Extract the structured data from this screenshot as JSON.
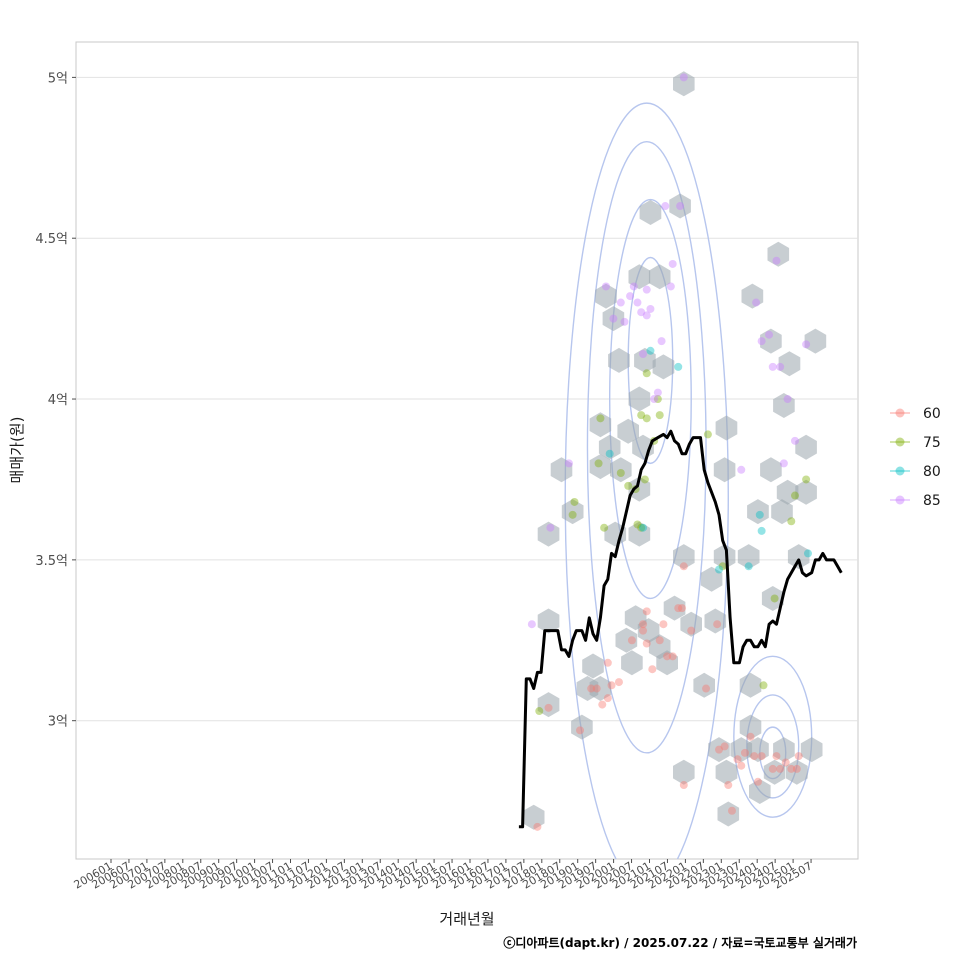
{
  "chart_data": {
    "type": "scatter",
    "xlabel": "거래년월",
    "ylabel": "매매가(원)",
    "caption": "ⓒ디아파트(dapt.kr) / 2025.07.22 / 자료=국토교통부 실거래가",
    "x_range": [
      2005.6,
      2026.7
    ],
    "y_range": [
      2.57,
      5.11
    ],
    "y_ticks": [
      {
        "value": 3.0,
        "label": "3억"
      },
      {
        "value": 3.5,
        "label": "3.5억"
      },
      {
        "value": 4.0,
        "label": "4억"
      },
      {
        "value": 4.5,
        "label": "4.5억"
      },
      {
        "value": 5.0,
        "label": "5억"
      }
    ],
    "x_ticks": [
      "200601",
      "200607",
      "200701",
      "200707",
      "200801",
      "200807",
      "200901",
      "200907",
      "201001",
      "201007",
      "201101",
      "201107",
      "201201",
      "201207",
      "201301",
      "201307",
      "201401",
      "201407",
      "201501",
      "201507",
      "201601",
      "201607",
      "201701",
      "201707",
      "201801",
      "201807",
      "201901",
      "201907",
      "202001",
      "202007",
      "202101",
      "202107",
      "202201",
      "202207",
      "202301",
      "202307",
      "202401",
      "202407",
      "202501",
      "202507"
    ],
    "legend": [
      {
        "name": "60",
        "color": "#F8766D"
      },
      {
        "name": "75",
        "color": "#7CAE00"
      },
      {
        "name": "80",
        "color": "#00BFC4"
      },
      {
        "name": "85",
        "color": "#C77CFF"
      }
    ],
    "series": [
      {
        "name": "60",
        "points": [
          [
            2018.05,
            2.67
          ],
          [
            2018.35,
            3.04
          ],
          [
            2019.2,
            2.97
          ],
          [
            2019.5,
            3.1
          ],
          [
            2019.65,
            3.1
          ],
          [
            2019.8,
            3.05
          ],
          [
            2019.95,
            3.18
          ],
          [
            2019.95,
            3.07
          ],
          [
            2020.05,
            3.11
          ],
          [
            2020.25,
            3.12
          ],
          [
            2020.6,
            3.25
          ],
          [
            2020.9,
            3.3
          ],
          [
            2020.9,
            3.28
          ],
          [
            2021.0,
            3.34
          ],
          [
            2021.0,
            3.24
          ],
          [
            2021.15,
            3.16
          ],
          [
            2021.35,
            3.25
          ],
          [
            2021.45,
            3.3
          ],
          [
            2021.55,
            3.2
          ],
          [
            2021.7,
            3.2
          ],
          [
            2021.85,
            3.35
          ],
          [
            2021.95,
            3.35
          ],
          [
            2022.0,
            3.48
          ],
          [
            2022.0,
            2.8
          ],
          [
            2022.2,
            3.28
          ],
          [
            2022.6,
            3.1
          ],
          [
            2022.9,
            3.3
          ],
          [
            2022.95,
            2.91
          ],
          [
            2023.1,
            2.92
          ],
          [
            2023.2,
            2.8
          ],
          [
            2023.3,
            2.72
          ],
          [
            2023.45,
            2.88
          ],
          [
            2023.55,
            2.86
          ],
          [
            2023.65,
            2.9
          ],
          [
            2023.8,
            2.95
          ],
          [
            2023.9,
            2.89
          ],
          [
            2024.0,
            2.81
          ],
          [
            2024.1,
            2.89
          ],
          [
            2024.4,
            2.85
          ],
          [
            2024.5,
            2.89
          ],
          [
            2024.6,
            2.85
          ],
          [
            2024.75,
            2.87
          ],
          [
            2024.9,
            2.85
          ],
          [
            2025.05,
            2.85
          ],
          [
            2025.1,
            2.89
          ]
        ]
      },
      {
        "name": "75",
        "points": [
          [
            2018.1,
            3.03
          ],
          [
            2019.0,
            3.64
          ],
          [
            2019.05,
            3.68
          ],
          [
            2019.7,
            3.8
          ],
          [
            2019.75,
            3.94
          ],
          [
            2019.85,
            3.6
          ],
          [
            2020.3,
            3.77
          ],
          [
            2020.5,
            3.73
          ],
          [
            2020.7,
            3.72
          ],
          [
            2020.75,
            3.61
          ],
          [
            2020.85,
            3.6
          ],
          [
            2020.85,
            3.95
          ],
          [
            2020.95,
            3.75
          ],
          [
            2021.0,
            3.94
          ],
          [
            2021.0,
            4.08
          ],
          [
            2021.2,
            3.87
          ],
          [
            2021.3,
            4.0
          ],
          [
            2021.35,
            3.95
          ],
          [
            2022.65,
            3.89
          ],
          [
            2023.05,
            3.48
          ],
          [
            2024.15,
            3.11
          ],
          [
            2024.45,
            3.38
          ],
          [
            2024.9,
            3.62
          ],
          [
            2025.0,
            3.7
          ],
          [
            2025.3,
            3.75
          ]
        ]
      },
      {
        "name": "80",
        "points": [
          [
            2020.0,
            3.83
          ],
          [
            2020.9,
            3.6
          ],
          [
            2021.1,
            4.15
          ],
          [
            2021.85,
            4.1
          ],
          [
            2022.95,
            3.47
          ],
          [
            2023.75,
            3.48
          ],
          [
            2024.05,
            3.64
          ],
          [
            2024.1,
            3.59
          ],
          [
            2025.35,
            3.52
          ]
        ]
      },
      {
        "name": "85",
        "points": [
          [
            2017.9,
            3.3
          ],
          [
            2018.4,
            3.6
          ],
          [
            2018.9,
            3.8
          ],
          [
            2019.9,
            4.35
          ],
          [
            2020.1,
            4.25
          ],
          [
            2020.3,
            4.3
          ],
          [
            2020.4,
            4.24
          ],
          [
            2020.55,
            4.32
          ],
          [
            2020.65,
            4.35
          ],
          [
            2020.75,
            4.3
          ],
          [
            2020.85,
            4.27
          ],
          [
            2020.9,
            4.14
          ],
          [
            2021.0,
            4.34
          ],
          [
            2021.0,
            4.26
          ],
          [
            2021.1,
            4.28
          ],
          [
            2021.2,
            4.0
          ],
          [
            2021.3,
            4.02
          ],
          [
            2021.4,
            4.18
          ],
          [
            2021.5,
            4.6
          ],
          [
            2021.65,
            4.35
          ],
          [
            2021.7,
            4.42
          ],
          [
            2021.9,
            4.6
          ],
          [
            2022.0,
            5.0
          ],
          [
            2023.55,
            3.78
          ],
          [
            2023.95,
            4.3
          ],
          [
            2024.1,
            4.18
          ],
          [
            2024.3,
            4.2
          ],
          [
            2024.4,
            4.1
          ],
          [
            2024.5,
            4.43
          ],
          [
            2024.6,
            4.1
          ],
          [
            2024.7,
            3.8
          ],
          [
            2024.8,
            4.0
          ],
          [
            2025.0,
            3.87
          ],
          [
            2025.3,
            4.17
          ]
        ]
      },
      {
        "name": "hex",
        "points": [
          [
            2017.95,
            2.7
          ],
          [
            2018.35,
            3.05
          ],
          [
            2018.35,
            3.31
          ],
          [
            2018.35,
            3.58
          ],
          [
            2018.7,
            3.78
          ],
          [
            2019.0,
            3.65
          ],
          [
            2019.25,
            2.98
          ],
          [
            2019.4,
            3.1
          ],
          [
            2019.55,
            3.17
          ],
          [
            2019.75,
            3.1
          ],
          [
            2019.75,
            3.79
          ],
          [
            2019.75,
            3.92
          ],
          [
            2019.9,
            4.32
          ],
          [
            2020.0,
            3.85
          ],
          [
            2020.1,
            4.25
          ],
          [
            2020.15,
            3.58
          ],
          [
            2020.25,
            4.12
          ],
          [
            2020.3,
            3.78
          ],
          [
            2020.45,
            3.25
          ],
          [
            2020.5,
            3.9
          ],
          [
            2020.6,
            3.18
          ],
          [
            2020.7,
            3.32
          ],
          [
            2020.8,
            3.58
          ],
          [
            2020.8,
            3.72
          ],
          [
            2020.8,
            4.0
          ],
          [
            2020.8,
            4.38
          ],
          [
            2020.9,
            3.85
          ],
          [
            2020.95,
            4.12
          ],
          [
            2021.05,
            3.28
          ],
          [
            2021.1,
            4.58
          ],
          [
            2021.35,
            3.23
          ],
          [
            2021.35,
            4.38
          ],
          [
            2021.45,
            4.1
          ],
          [
            2021.55,
            3.18
          ],
          [
            2021.75,
            3.35
          ],
          [
            2021.9,
            4.6
          ],
          [
            2022.0,
            4.98
          ],
          [
            2022.0,
            3.51
          ],
          [
            2022.0,
            2.84
          ],
          [
            2022.2,
            3.3
          ],
          [
            2022.55,
            3.11
          ],
          [
            2022.75,
            3.44
          ],
          [
            2022.85,
            3.31
          ],
          [
            2022.95,
            2.91
          ],
          [
            2023.1,
            3.78
          ],
          [
            2023.1,
            3.51
          ],
          [
            2023.15,
            2.84
          ],
          [
            2023.15,
            3.91
          ],
          [
            2023.2,
            2.71
          ],
          [
            2023.55,
            2.91
          ],
          [
            2023.75,
            3.51
          ],
          [
            2023.8,
            3.11
          ],
          [
            2023.8,
            2.98
          ],
          [
            2023.85,
            4.32
          ],
          [
            2024.0,
            3.65
          ],
          [
            2024.0,
            2.91
          ],
          [
            2024.05,
            2.78
          ],
          [
            2024.35,
            4.18
          ],
          [
            2024.35,
            3.78
          ],
          [
            2024.4,
            3.38
          ],
          [
            2024.45,
            2.84
          ],
          [
            2024.55,
            4.45
          ],
          [
            2024.65,
            3.65
          ],
          [
            2024.7,
            2.91
          ],
          [
            2024.7,
            3.98
          ],
          [
            2024.8,
            3.71
          ],
          [
            2024.85,
            4.11
          ],
          [
            2025.05,
            2.84
          ],
          [
            2025.1,
            3.51
          ],
          [
            2025.3,
            3.85
          ],
          [
            2025.3,
            3.71
          ],
          [
            2025.45,
            2.91
          ],
          [
            2025.55,
            4.18
          ]
        ]
      },
      {
        "name": "moving-average",
        "points": [
          [
            2017.55,
            2.67
          ],
          [
            2017.65,
            2.67
          ],
          [
            2017.75,
            3.13
          ],
          [
            2017.85,
            3.13
          ],
          [
            2017.95,
            3.1
          ],
          [
            2018.05,
            3.15
          ],
          [
            2018.15,
            3.15
          ],
          [
            2018.25,
            3.28
          ],
          [
            2018.4,
            3.28
          ],
          [
            2018.6,
            3.28
          ],
          [
            2018.7,
            3.22
          ],
          [
            2018.8,
            3.22
          ],
          [
            2018.9,
            3.2
          ],
          [
            2019.0,
            3.25
          ],
          [
            2019.1,
            3.28
          ],
          [
            2019.25,
            3.28
          ],
          [
            2019.35,
            3.25
          ],
          [
            2019.45,
            3.32
          ],
          [
            2019.55,
            3.27
          ],
          [
            2019.65,
            3.25
          ],
          [
            2019.75,
            3.32
          ],
          [
            2019.85,
            3.42
          ],
          [
            2019.95,
            3.44
          ],
          [
            2020.05,
            3.52
          ],
          [
            2020.15,
            3.51
          ],
          [
            2020.25,
            3.56
          ],
          [
            2020.35,
            3.6
          ],
          [
            2020.45,
            3.65
          ],
          [
            2020.55,
            3.7
          ],
          [
            2020.65,
            3.72
          ],
          [
            2020.75,
            3.73
          ],
          [
            2020.85,
            3.78
          ],
          [
            2020.95,
            3.8
          ],
          [
            2021.05,
            3.84
          ],
          [
            2021.15,
            3.87
          ],
          [
            2021.3,
            3.88
          ],
          [
            2021.45,
            3.89
          ],
          [
            2021.55,
            3.88
          ],
          [
            2021.65,
            3.9
          ],
          [
            2021.75,
            3.87
          ],
          [
            2021.85,
            3.86
          ],
          [
            2021.95,
            3.83
          ],
          [
            2022.05,
            3.83
          ],
          [
            2022.15,
            3.86
          ],
          [
            2022.25,
            3.88
          ],
          [
            2022.35,
            3.88
          ],
          [
            2022.45,
            3.88
          ],
          [
            2022.55,
            3.78
          ],
          [
            2022.65,
            3.74
          ],
          [
            2022.75,
            3.71
          ],
          [
            2022.85,
            3.68
          ],
          [
            2022.95,
            3.64
          ],
          [
            2023.05,
            3.56
          ],
          [
            2023.15,
            3.53
          ],
          [
            2023.25,
            3.32
          ],
          [
            2023.35,
            3.18
          ],
          [
            2023.5,
            3.18
          ],
          [
            2023.6,
            3.23
          ],
          [
            2023.7,
            3.25
          ],
          [
            2023.8,
            3.25
          ],
          [
            2023.9,
            3.23
          ],
          [
            2024.0,
            3.23
          ],
          [
            2024.1,
            3.25
          ],
          [
            2024.2,
            3.23
          ],
          [
            2024.3,
            3.3
          ],
          [
            2024.4,
            3.31
          ],
          [
            2024.5,
            3.3
          ],
          [
            2024.6,
            3.35
          ],
          [
            2024.7,
            3.4
          ],
          [
            2024.8,
            3.44
          ],
          [
            2024.9,
            3.46
          ],
          [
            2025.0,
            3.48
          ],
          [
            2025.1,
            3.5
          ],
          [
            2025.2,
            3.46
          ],
          [
            2025.3,
            3.45
          ],
          [
            2025.45,
            3.46
          ],
          [
            2025.55,
            3.5
          ],
          [
            2025.65,
            3.5
          ],
          [
            2025.75,
            3.52
          ],
          [
            2025.85,
            3.5
          ],
          [
            2025.95,
            3.5
          ],
          [
            2026.05,
            3.5
          ],
          [
            2026.15,
            3.48
          ],
          [
            2026.25,
            3.46
          ]
        ]
      }
    ]
  }
}
